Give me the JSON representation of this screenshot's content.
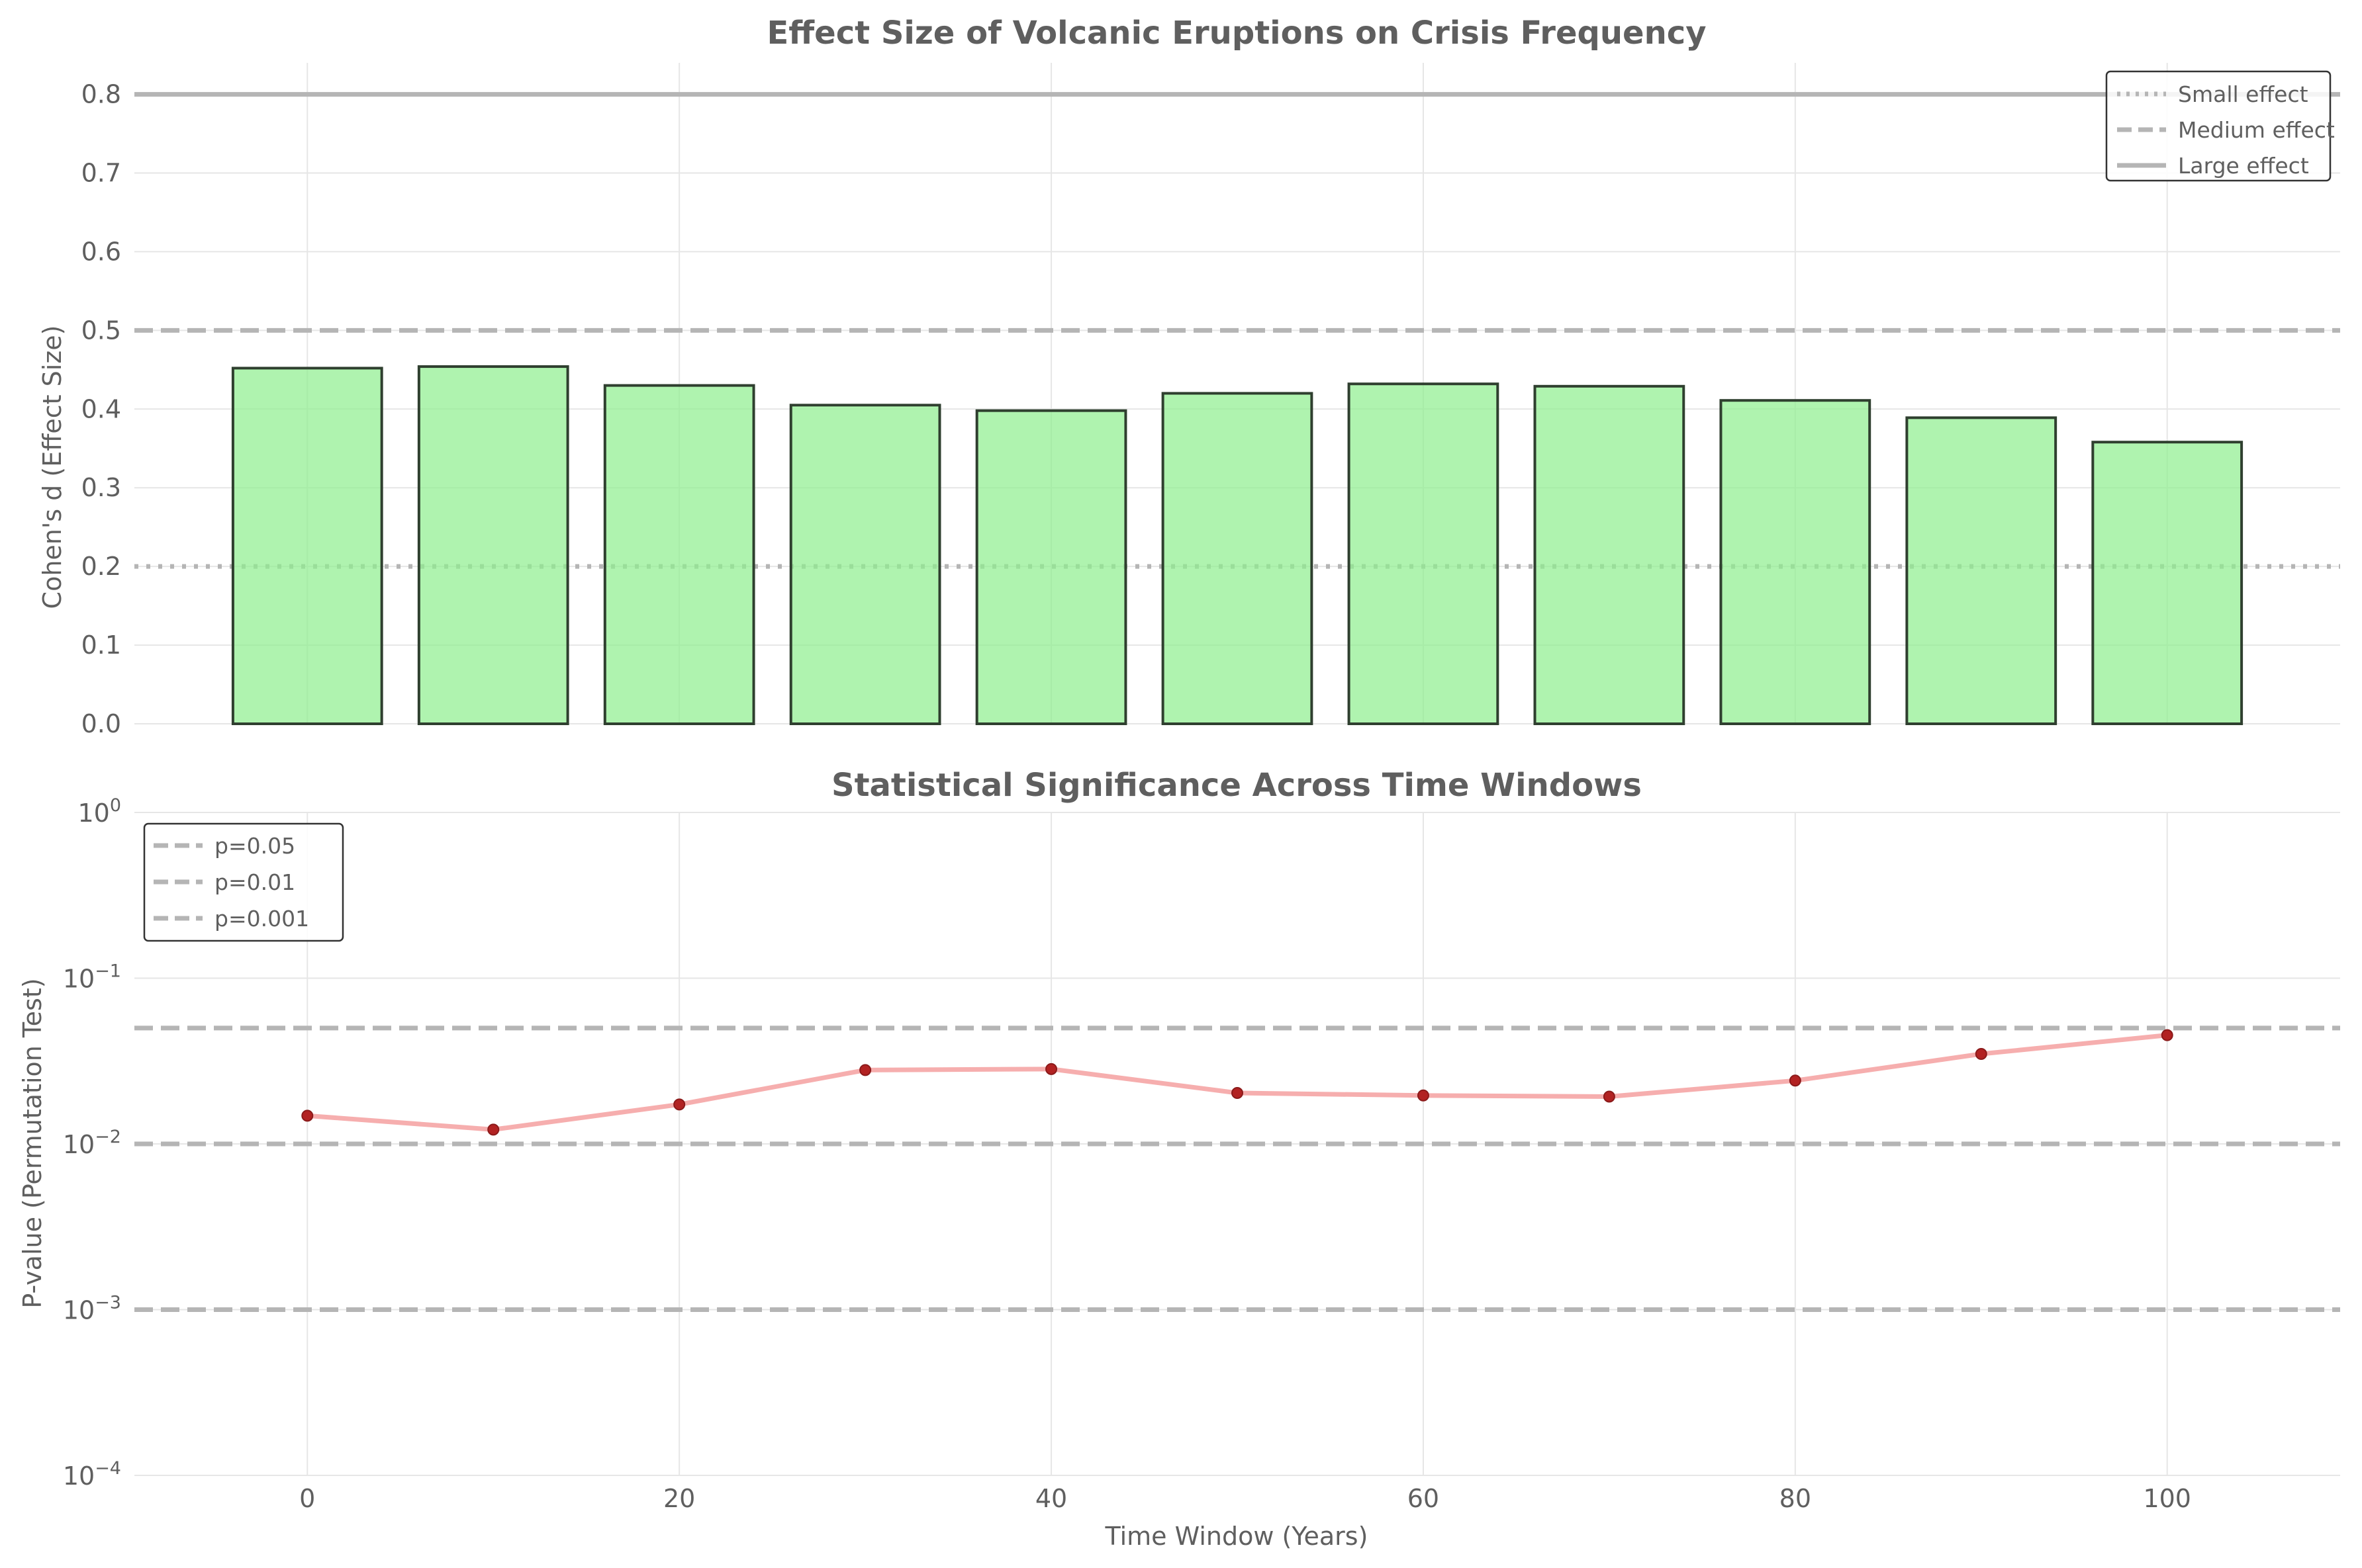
{
  "chart_data": [
    {
      "type": "bar",
      "title": "Effect Size of Volcanic Eruptions on Crisis Frequency",
      "xlabel": "",
      "ylabel": "Cohen's d (Effect Size)",
      "x": [
        0,
        10,
        20,
        30,
        40,
        50,
        60,
        70,
        80,
        90,
        100
      ],
      "values": [
        0.452,
        0.454,
        0.43,
        0.405,
        0.398,
        0.42,
        0.432,
        0.429,
        0.411,
        0.389,
        0.358
      ],
      "xlim": [
        -9.3,
        109.3
      ],
      "ylim": [
        0,
        0.84
      ],
      "yticks": [
        0.0,
        0.1,
        0.2,
        0.3,
        0.4,
        0.5,
        0.6,
        0.7,
        0.8
      ],
      "ytick_labels": [
        "0.0",
        "0.1",
        "0.2",
        "0.3",
        "0.4",
        "0.5",
        "0.6",
        "0.7",
        "0.8"
      ],
      "bar_color": "#90ee90",
      "reference_lines": [
        {
          "name": "Small effect",
          "y": 0.2,
          "style": "dotted"
        },
        {
          "name": "Medium effect",
          "y": 0.5,
          "style": "dashed"
        },
        {
          "name": "Large effect",
          "y": 0.8,
          "style": "solid"
        }
      ],
      "legend": "top-right",
      "grid": true
    },
    {
      "type": "line",
      "title": "Statistical Significance Across Time Windows",
      "xlabel": "Time Window (Years)",
      "ylabel": "P-value (Permutation Test)",
      "x": [
        0,
        10,
        20,
        30,
        40,
        50,
        60,
        70,
        80,
        90,
        100
      ],
      "values": [
        0.0148,
        0.0122,
        0.0173,
        0.0279,
        0.0283,
        0.0203,
        0.0196,
        0.0193,
        0.0241,
        0.0349,
        0.0453
      ],
      "xlim": [
        -9.3,
        109.3
      ],
      "xticks": [
        0,
        20,
        40,
        60,
        80,
        100
      ],
      "xtick_labels": [
        "0",
        "20",
        "40",
        "60",
        "80",
        "100"
      ],
      "yscale": "log",
      "ylim": [
        0.0001,
        1
      ],
      "yticks": [
        {
          "value": 1,
          "base": "10",
          "exp": "0"
        },
        {
          "value": 0.1,
          "base": "10",
          "exp": "−1"
        },
        {
          "value": 0.01,
          "base": "10",
          "exp": "−2"
        },
        {
          "value": 0.001,
          "base": "10",
          "exp": "−3"
        },
        {
          "value": 0.0001,
          "base": "10",
          "exp": "−4"
        }
      ],
      "line_color": "#f4a0a0",
      "marker_color": "#b22222",
      "reference_lines": [
        {
          "name": "p=0.05",
          "y": 0.05,
          "style": "dashed"
        },
        {
          "name": "p=0.01",
          "y": 0.01,
          "style": "dashed"
        },
        {
          "name": "p=0.001",
          "y": 0.001,
          "style": "dashed"
        }
      ],
      "legend": "top-left",
      "grid": true
    }
  ]
}
